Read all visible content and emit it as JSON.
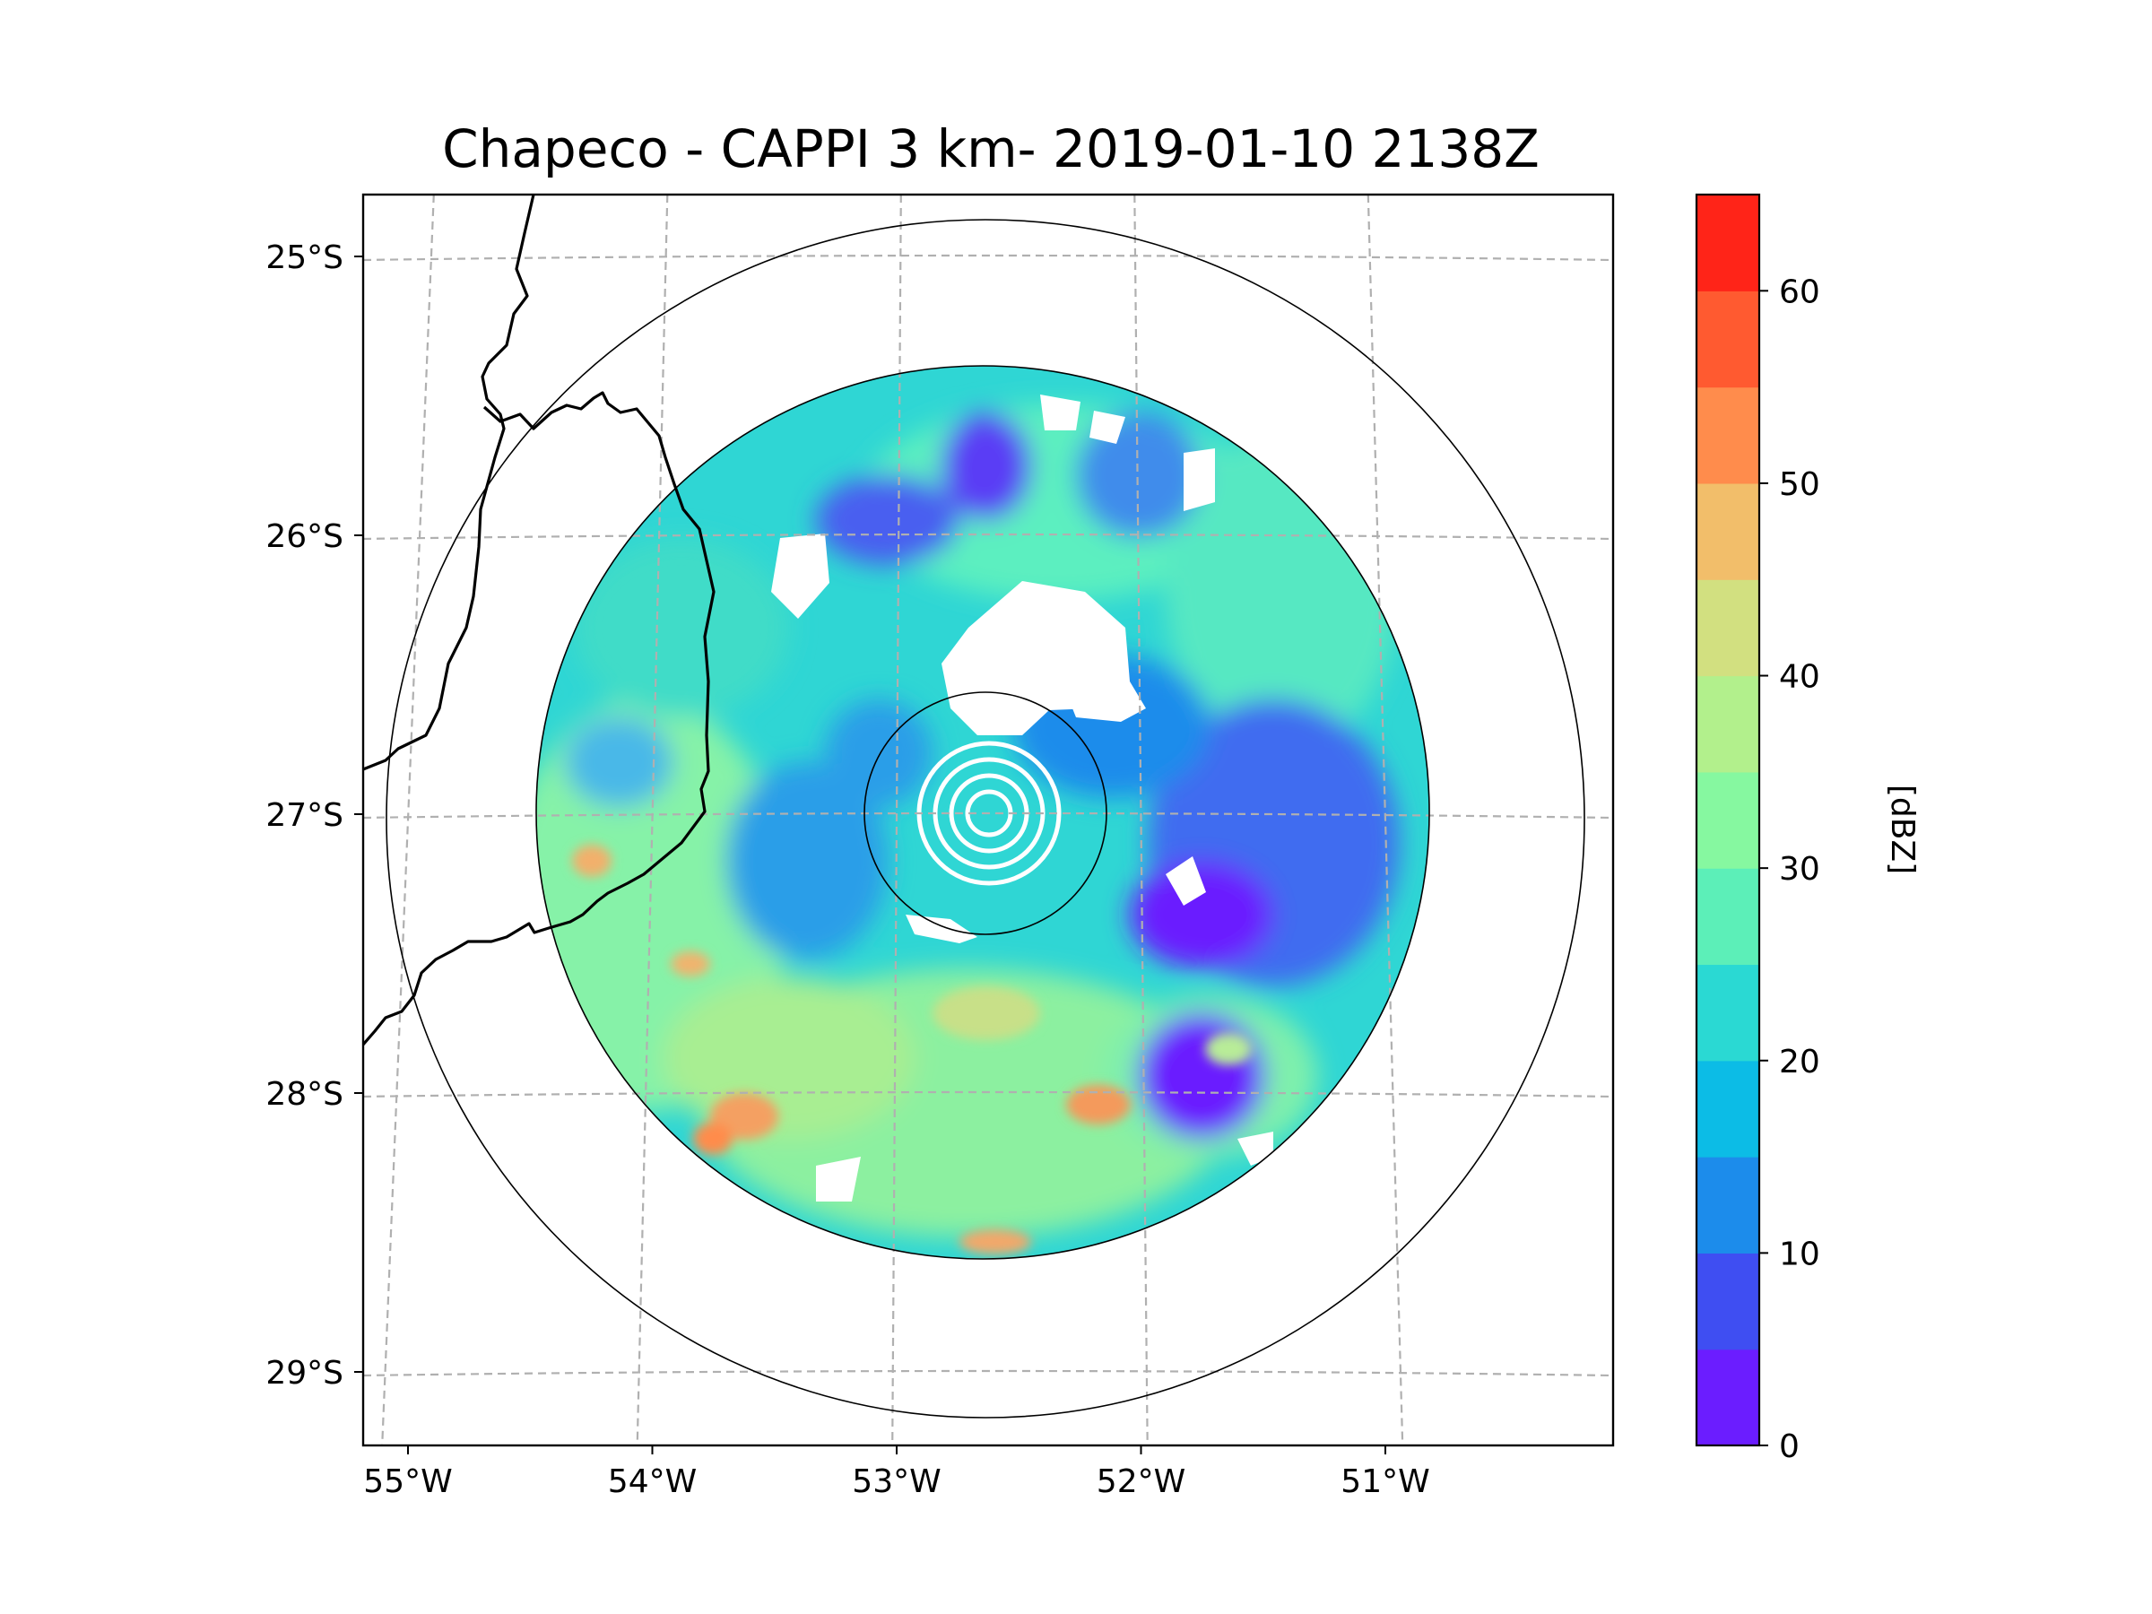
{
  "title": "Chapeco - CAPPI 3 km- 2019-01-10 2138Z",
  "map": {
    "extent": {
      "lon": [
        -55.18,
        -50.02
      ],
      "lat": [
        -29.27,
        -24.78
      ]
    },
    "radar_center": {
      "lon": -52.6,
      "lat": -27.0
    },
    "lat_ticks": [
      {
        "value": -25,
        "label": "25°S"
      },
      {
        "value": -26,
        "label": "26°S"
      },
      {
        "value": -27,
        "label": "27°S"
      },
      {
        "value": -28,
        "label": "28°S"
      },
      {
        "value": -29,
        "label": "29°S"
      }
    ],
    "lon_ticks": [
      {
        "value": -55,
        "label": "55°W"
      },
      {
        "value": -54,
        "label": "54°W"
      },
      {
        "value": -53,
        "label": "53°W"
      },
      {
        "value": -52,
        "label": "52°W"
      },
      {
        "value": -51,
        "label": "51°W"
      }
    ],
    "gridlines": true,
    "range_rings": [
      "inner",
      "data-edge",
      "outer"
    ]
  },
  "colorbar": {
    "label": "[dBZ]",
    "min": 0,
    "max": 65,
    "step": 5,
    "colors": [
      "#6b1dff",
      "#3f4ef2",
      "#1c8ceb",
      "#0cbce6",
      "#2ad9d3",
      "#5cefb8",
      "#86f8a0",
      "#b2f08c",
      "#d2e080",
      "#f2be6a",
      "#ff8c4c",
      "#ff5a30",
      "#ff2418"
    ],
    "ticks": [
      {
        "value": 0,
        "label": "0"
      },
      {
        "value": 10,
        "label": "10"
      },
      {
        "value": 20,
        "label": "20"
      },
      {
        "value": 30,
        "label": "30"
      },
      {
        "value": 40,
        "label": "40"
      },
      {
        "value": 50,
        "label": "50"
      },
      {
        "value": 60,
        "label": "60"
      }
    ]
  },
  "chart_data": {
    "type": "heatmap",
    "title": "Chapeco - CAPPI 3 km- 2019-01-10 2138Z",
    "xlabel": "",
    "ylabel": "",
    "colorbar_label": "[dBZ]",
    "value_range": [
      0,
      65
    ],
    "x_ticks": [
      "55°W",
      "54°W",
      "53°W",
      "52°W",
      "51°W"
    ],
    "y_ticks": [
      "25°S",
      "26°S",
      "27°S",
      "28°S",
      "29°S"
    ],
    "colorbar_ticks": [
      0,
      10,
      20,
      30,
      40,
      50,
      60
    ],
    "dominant_reflectivity_dBZ": [
      5,
      35
    ],
    "local_maxima_dBZ": [
      {
        "lon": -53.65,
        "lat": -28.15,
        "value": 45
      },
      {
        "lon": -52.1,
        "lat": -28.05,
        "value": 45
      },
      {
        "lon": -52.65,
        "lat": -28.55,
        "value": 45
      },
      {
        "lon": -54.25,
        "lat": -27.15,
        "value": 40
      },
      {
        "lon": -53.85,
        "lat": -27.55,
        "value": 40
      }
    ]
  }
}
